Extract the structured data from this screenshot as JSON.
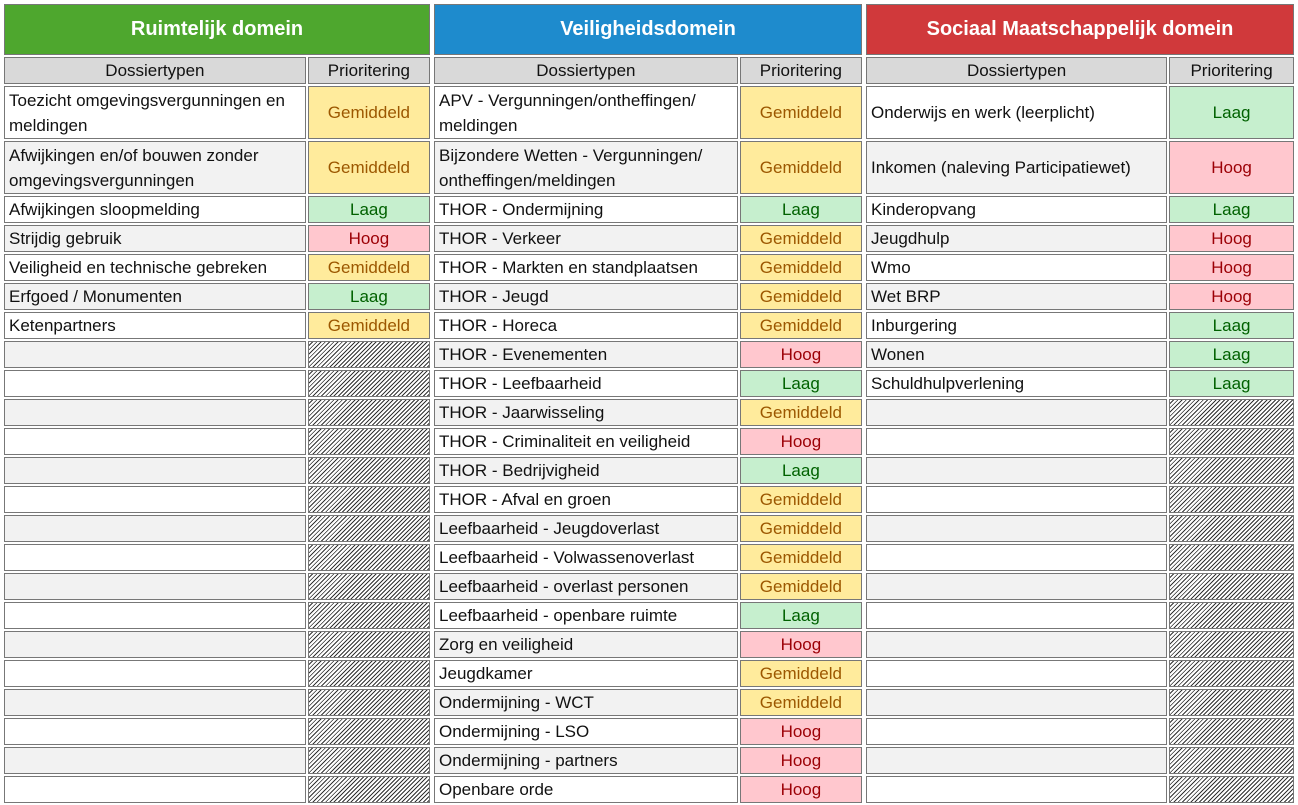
{
  "domains": [
    {
      "title": "Ruimtelijk domein",
      "color": "#4ea72e",
      "columns": [
        "Dossiertypen",
        "Prioritering"
      ],
      "rows": [
        [
          "Toezicht omgevingsvergunningen en meldingen",
          "Gemiddeld"
        ],
        [
          "Afwijkingen en/of bouwen zonder omgevingsvergunningen",
          "Gemiddeld"
        ],
        [
          "Afwijkingen sloopmelding",
          "Laag"
        ],
        [
          "Strijdig gebruik",
          "Hoog"
        ],
        [
          "Veiligheid en technische gebreken",
          "Gemiddeld"
        ],
        [
          "Erfgoed / Monumenten",
          "Laag"
        ],
        [
          "Ketenpartners",
          "Gemiddeld"
        ]
      ]
    },
    {
      "title": "Veiligheidsdomein",
      "color": "#1e8bcd",
      "columns": [
        "Dossiertypen",
        "Prioritering"
      ],
      "rows": [
        [
          "APV - Vergunningen/ontheffingen/ meldingen",
          "Gemiddeld"
        ],
        [
          "Bijzondere Wetten - Vergunningen/ ontheffingen/meldingen",
          "Gemiddeld"
        ],
        [
          "THOR - Ondermijning",
          "Laag"
        ],
        [
          "THOR - Verkeer",
          "Gemiddeld"
        ],
        [
          "THOR - Markten en standplaatsen",
          "Gemiddeld"
        ],
        [
          "THOR - Jeugd",
          "Gemiddeld"
        ],
        [
          "THOR - Horeca",
          "Gemiddeld"
        ],
        [
          "THOR - Evenementen",
          "Hoog"
        ],
        [
          "THOR - Leefbaarheid",
          "Laag"
        ],
        [
          "THOR - Jaarwisseling",
          "Gemiddeld"
        ],
        [
          "THOR - Criminaliteit en veiligheid",
          "Hoog"
        ],
        [
          "THOR - Bedrijvigheid",
          "Laag"
        ],
        [
          "THOR - Afval en groen",
          "Gemiddeld"
        ],
        [
          "Leefbaarheid - Jeugdoverlast",
          "Gemiddeld"
        ],
        [
          "Leefbaarheid - Volwassenoverlast",
          "Gemiddeld"
        ],
        [
          "Leefbaarheid - overlast personen",
          "Gemiddeld"
        ],
        [
          "Leefbaarheid - openbare ruimte",
          "Laag"
        ],
        [
          "Zorg en veiligheid",
          "Hoog"
        ],
        [
          "Jeugdkamer",
          "Gemiddeld"
        ],
        [
          "Ondermijning - WCT",
          "Gemiddeld"
        ],
        [
          "Ondermijning - LSO",
          "Hoog"
        ],
        [
          "Ondermijning - partners",
          "Hoog"
        ],
        [
          "Openbare orde",
          "Hoog"
        ]
      ]
    },
    {
      "title": "Sociaal Maatschappelijk domein",
      "color": "#d0393b",
      "columns": [
        "Dossiertypen",
        "Prioritering"
      ],
      "rows": [
        [
          "Onderwijs en werk (leerplicht)",
          "Laag"
        ],
        [
          "Inkomen (naleving Participatiewet)",
          "Hoog"
        ],
        [
          "Kinderopvang",
          "Laag"
        ],
        [
          "Jeugdhulp",
          "Hoog"
        ],
        [
          "Wmo",
          "Hoog"
        ],
        [
          "Wet BRP",
          "Hoog"
        ],
        [
          "Inburgering",
          "Laag"
        ],
        [
          "Wonen",
          "Laag"
        ],
        [
          "Schuldhulpverlening",
          "Laag"
        ]
      ]
    }
  ],
  "priority_colors": {
    "Gemiddeld": {
      "background": "#ffeb9c",
      "color": "#9c5700"
    },
    "Laag": {
      "background": "#c6efce",
      "color": "#006100"
    },
    "Hoog": {
      "background": "#ffc7ce",
      "color": "#9c0006"
    }
  }
}
